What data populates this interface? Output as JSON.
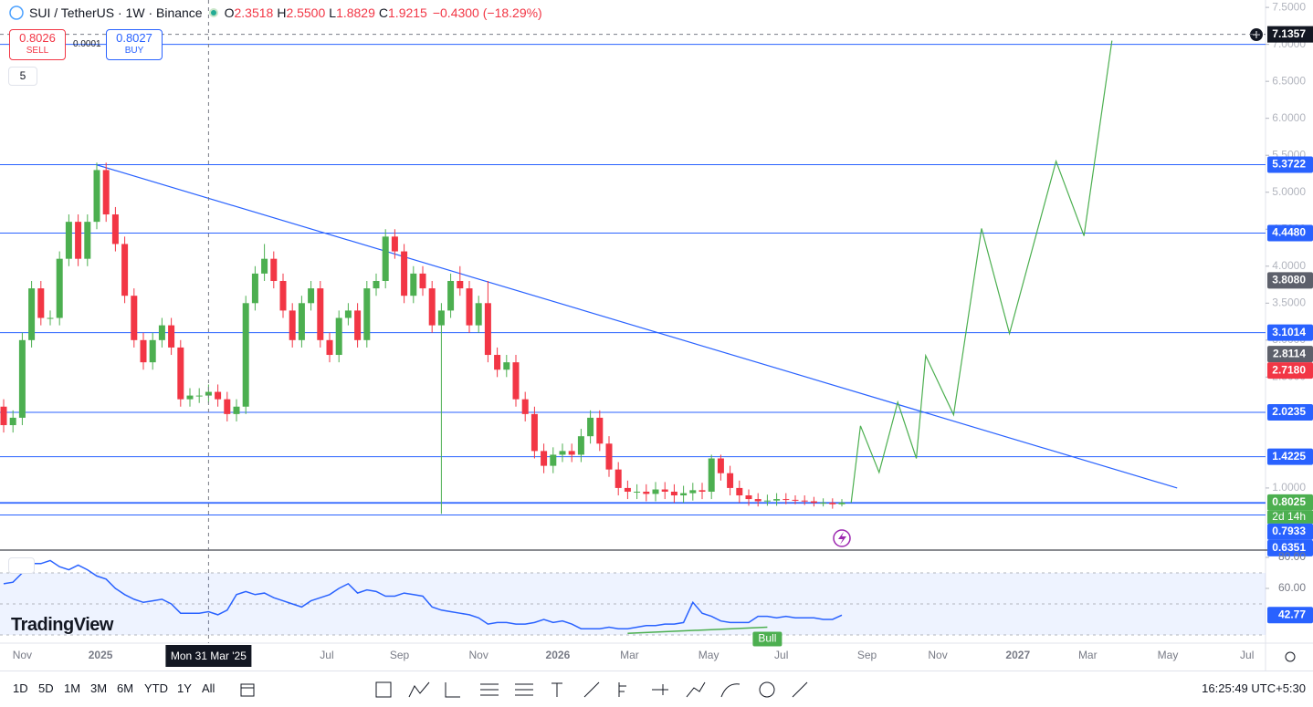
{
  "header": {
    "symbol": "SUI / TetherUS · 1W · Binance",
    "ohlc": [
      {
        "key": "O",
        "value": "2.3518"
      },
      {
        "key": "H",
        "value": "2.5500"
      },
      {
        "key": "L",
        "value": "1.8829"
      },
      {
        "key": "C",
        "value": "1.9215"
      }
    ],
    "change": "−0.4300 (−18.29%)"
  },
  "trade": {
    "sell_price": "0.8026",
    "sell": "SELL",
    "spread": "0.0001",
    "buy_price": "0.8027",
    "buy": "BUY",
    "indicator_count": "5"
  },
  "logo": "TradingView",
  "chart_data": {
    "type": "candlestick",
    "colors": {
      "up": "#4caf50",
      "down": "#f23645",
      "level": "#2962ff",
      "projection": "#4caf50",
      "trendline": "#2962ff"
    },
    "open": [
      2.1,
      1.85,
      1.95,
      3.0,
      3.7,
      3.3,
      3.3,
      4.1,
      4.6,
      4.1,
      4.6,
      5.3,
      4.7,
      4.3,
      3.6,
      3.0,
      2.7,
      3.0,
      3.2,
      2.9,
      2.2,
      2.25,
      2.25,
      2.3,
      2.2,
      2.0,
      2.1,
      3.5,
      3.9,
      4.1,
      3.8,
      3.4,
      3.0,
      3.5,
      3.7,
      3.0,
      2.8,
      3.3,
      3.4,
      3.0,
      3.7,
      3.8,
      4.4,
      4.2,
      3.6,
      3.9,
      3.7,
      3.2,
      3.4,
      3.8,
      3.7,
      3.2,
      3.5,
      2.8,
      2.6,
      2.7,
      2.2,
      2.0,
      1.5,
      1.3,
      1.45,
      1.5,
      1.45,
      1.7,
      1.95,
      1.6,
      1.25,
      1.0,
      0.95,
      0.95,
      0.92,
      0.98,
      0.95,
      0.9,
      0.93,
      0.97,
      0.95,
      1.4,
      1.2,
      1.0,
      0.9,
      0.85,
      0.82,
      0.83,
      0.85,
      0.84,
      0.83,
      0.82,
      0.8,
      0.8,
      0.78
    ],
    "high": [
      2.2,
      2.05,
      3.1,
      3.8,
      3.8,
      3.4,
      4.2,
      4.7,
      4.7,
      4.7,
      5.4,
      5.4,
      4.8,
      4.4,
      3.7,
      3.1,
      3.1,
      3.3,
      3.3,
      3.0,
      2.35,
      2.35,
      2.4,
      2.4,
      2.3,
      2.2,
      3.6,
      4.0,
      4.3,
      4.2,
      3.9,
      3.5,
      3.6,
      3.8,
      3.8,
      3.1,
      3.4,
      3.5,
      3.5,
      3.8,
      3.9,
      4.5,
      4.5,
      4.3,
      4.0,
      4.0,
      3.8,
      3.5,
      3.9,
      4.0,
      3.8,
      3.6,
      3.8,
      2.9,
      2.8,
      2.8,
      2.3,
      2.1,
      1.6,
      1.55,
      1.6,
      1.6,
      1.8,
      2.05,
      2.05,
      1.7,
      1.35,
      1.1,
      1.05,
      1.05,
      1.08,
      1.08,
      1.05,
      1.03,
      1.07,
      1.07,
      1.45,
      1.45,
      1.3,
      1.1,
      0.98,
      0.93,
      0.91,
      0.93,
      0.93,
      0.9,
      0.9,
      0.88,
      0.86,
      0.86,
      0.85
    ],
    "low": [
      1.75,
      1.75,
      1.85,
      2.9,
      3.2,
      3.2,
      3.2,
      4.0,
      4.0,
      4.0,
      4.5,
      4.6,
      4.2,
      3.5,
      2.9,
      2.6,
      2.6,
      2.9,
      2.8,
      2.1,
      2.1,
      2.15,
      2.15,
      2.1,
      1.9,
      1.9,
      2.0,
      3.4,
      3.8,
      3.7,
      3.3,
      2.9,
      2.9,
      3.4,
      2.9,
      2.7,
      2.7,
      3.2,
      2.9,
      2.9,
      3.6,
      3.7,
      4.1,
      3.5,
      3.5,
      3.6,
      3.1,
      0.65,
      3.3,
      3.6,
      3.1,
      3.1,
      2.7,
      2.5,
      2.5,
      2.1,
      1.9,
      1.4,
      1.2,
      1.2,
      1.35,
      1.35,
      1.35,
      1.6,
      1.5,
      1.15,
      0.9,
      0.85,
      0.85,
      0.82,
      0.82,
      0.85,
      0.8,
      0.8,
      0.83,
      0.85,
      0.85,
      1.1,
      0.9,
      0.8,
      0.76,
      0.75,
      0.76,
      0.76,
      0.78,
      0.78,
      0.77,
      0.75,
      0.75,
      0.72,
      0.75
    ],
    "close": [
      1.85,
      1.95,
      3.0,
      3.7,
      3.3,
      3.3,
      4.1,
      4.6,
      4.1,
      4.6,
      5.3,
      4.7,
      4.3,
      3.6,
      3.0,
      2.7,
      3.0,
      3.2,
      2.9,
      2.2,
      2.25,
      2.25,
      2.3,
      2.2,
      2.0,
      2.1,
      3.5,
      3.9,
      4.1,
      3.8,
      3.4,
      3.0,
      3.5,
      3.7,
      3.0,
      2.8,
      3.3,
      3.4,
      3.0,
      3.7,
      3.8,
      4.4,
      4.2,
      3.6,
      3.9,
      3.7,
      3.2,
      3.4,
      3.8,
      3.7,
      3.2,
      3.5,
      2.8,
      2.6,
      2.7,
      2.2,
      2.0,
      1.5,
      1.3,
      1.45,
      1.5,
      1.45,
      1.7,
      1.95,
      1.6,
      1.25,
      1.0,
      0.95,
      0.95,
      0.92,
      0.98,
      0.95,
      0.9,
      0.93,
      0.97,
      0.95,
      1.4,
      1.2,
      1.0,
      0.9,
      0.85,
      0.82,
      0.83,
      0.85,
      0.84,
      0.83,
      0.82,
      0.8,
      0.8,
      0.78,
      0.8025
    ],
    "ylim": [
      0.16,
      7.6
    ],
    "yticks": [
      {
        "value": 7.5,
        "label": "7.5000"
      },
      {
        "value": 7.0,
        "label": "7.0000"
      },
      {
        "value": 6.5,
        "label": "6.5000"
      },
      {
        "value": 6.0,
        "label": "6.0000"
      },
      {
        "value": 5.5,
        "label": "5.5000"
      },
      {
        "value": 5.0,
        "label": "5.0000"
      },
      {
        "value": 4.5,
        "label": "4.5000"
      },
      {
        "value": 4.0,
        "label": "4.0000"
      },
      {
        "value": 3.5,
        "label": "3.5000"
      },
      {
        "value": 3.0,
        "label": "3.0000"
      },
      {
        "value": 2.5,
        "label": "2.5000"
      },
      {
        "value": 1.0,
        "label": "1.0000"
      }
    ],
    "levels": [
      7.0,
      5.3722,
      4.448,
      3.1014,
      2.0235,
      1.4225,
      0.8025,
      0.7933,
      0.6351
    ],
    "badges": [
      {
        "value": 5.3722,
        "label": "5.3722",
        "color": "#2962ff"
      },
      {
        "value": 4.448,
        "label": "4.4480",
        "color": "#2962ff"
      },
      {
        "value": 3.808,
        "label": "3.8080",
        "color": "#5d606b"
      },
      {
        "value": 3.1014,
        "label": "3.1014",
        "color": "#2962ff"
      },
      {
        "value": 2.8114,
        "label": "2.8114",
        "color": "#5d606b"
      },
      {
        "value": 2.718,
        "label": "2.7180",
        "color": "#f23645"
      },
      {
        "value": 2.0235,
        "label": "2.0235",
        "color": "#2962ff"
      },
      {
        "value": 1.4225,
        "label": "1.4225",
        "color": "#2962ff"
      },
      {
        "value": 0.8025,
        "label": "0.8025",
        "color": "#4caf50"
      },
      {
        "value": 0.7933,
        "label": "0.7933",
        "color": "#2962ff"
      },
      {
        "value": 0.6351,
        "label": "0.6351",
        "color": "#2962ff"
      }
    ],
    "countdown": "2d 14h",
    "trendline": {
      "x": [
        10,
        126
      ],
      "values": [
        5.37,
        1.0
      ]
    },
    "projection": {
      "x": [
        91,
        92,
        94,
        96,
        98,
        99,
        102,
        105,
        108,
        113,
        116,
        119
      ],
      "values": [
        0.8,
        1.84,
        1.21,
        2.16,
        1.4,
        2.79,
        1.99,
        4.51,
        3.09,
        5.42,
        4.41,
        7.05
      ]
    },
    "crosshair": {
      "x": 22,
      "value": 7.1357,
      "x_label": "Mon 31 Mar '25"
    },
    "x_labels": [
      {
        "value": 2,
        "label": "Nov"
      },
      {
        "value": 10.4,
        "label": "2025"
      },
      {
        "value": 34.7,
        "label": "Jul"
      },
      {
        "value": 42.5,
        "label": "Sep"
      },
      {
        "value": 51,
        "label": "Nov"
      },
      {
        "value": 59.5,
        "label": "2026"
      },
      {
        "value": 67.2,
        "label": "Mar"
      },
      {
        "value": 75.7,
        "label": "May"
      },
      {
        "value": 83.5,
        "label": "Jul"
      },
      {
        "value": 92.7,
        "label": "Sep"
      },
      {
        "value": 100.3,
        "label": "Nov"
      },
      {
        "value": 108.9,
        "label": "2027"
      },
      {
        "value": 116.4,
        "label": "Mar"
      },
      {
        "value": 125,
        "label": "May"
      },
      {
        "value": 133.5,
        "label": "Jul"
      }
    ]
  },
  "rsi": {
    "type": "line",
    "color": "#2962ff",
    "values": [
      63,
      64,
      70,
      76,
      76,
      78,
      74,
      72,
      75,
      72,
      68,
      66,
      60,
      56,
      53,
      51,
      52,
      53,
      50,
      44,
      44,
      44,
      45,
      43,
      46,
      56,
      58,
      56,
      57,
      54,
      52,
      50,
      48,
      52,
      54,
      56,
      60,
      63,
      57,
      59,
      58,
      55,
      55,
      57,
      56,
      55,
      48,
      46,
      45,
      44,
      43,
      41,
      37,
      38,
      38,
      37,
      37,
      38,
      40,
      38,
      39,
      37,
      34,
      34,
      34,
      35,
      34,
      34,
      35,
      36,
      36,
      37,
      37,
      38,
      51,
      44,
      42,
      39,
      38,
      38,
      38,
      42,
      42,
      41,
      42,
      41,
      41,
      41,
      40,
      40,
      42.77
    ],
    "ylim": [
      24.7,
      84.7
    ],
    "yticks": [
      {
        "value": 80,
        "label": "80.00"
      },
      {
        "value": 60,
        "label": "60.00"
      }
    ],
    "band": [
      30,
      70
    ],
    "band_lines": [
      70,
      50,
      30
    ],
    "divergence": {
      "x": [
        67,
        82
      ],
      "values": [
        31,
        35
      ],
      "color": "#4caf50",
      "label": "Bull"
    }
  },
  "footer": {
    "ranges": [
      "1D",
      "5D",
      "1M",
      "3M",
      "6M",
      "YTD",
      "1Y",
      "All"
    ],
    "time": "16:25:49 UTC+5:30"
  }
}
